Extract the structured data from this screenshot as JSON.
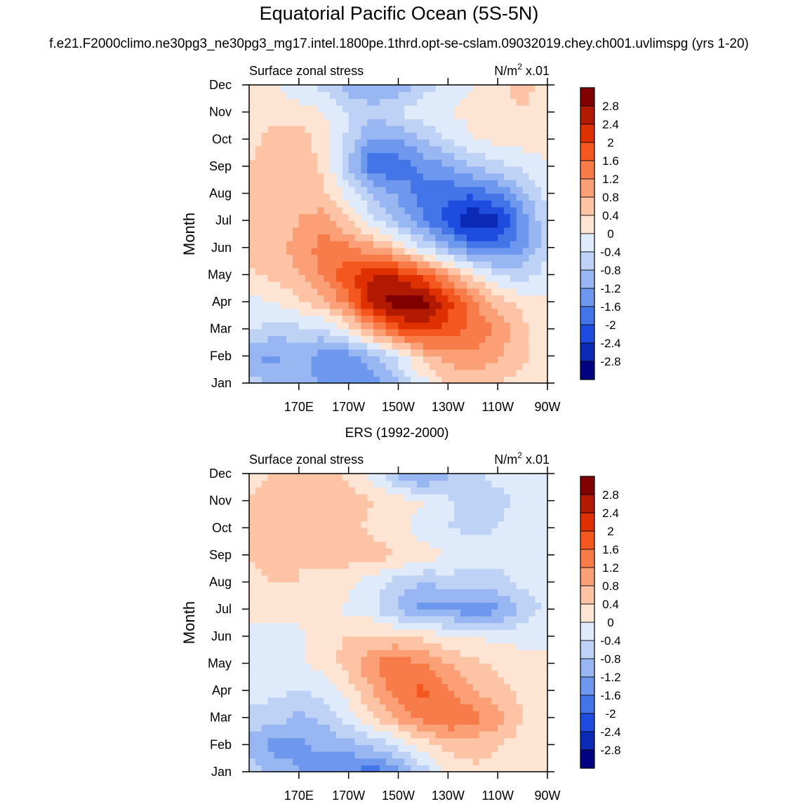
{
  "title": "Equatorial Pacific Ocean (5S-5N)",
  "subtitle": "f.e21.F2000climo.ne30pg3_ne30pg3_mg17.intel.1800pe.1thrd.opt-se-cslam.09032019.chey.ch001.uvlimspg (yrs 1-20)",
  "colorbar": {
    "labels": [
      "2.8",
      "2.4",
      "2",
      "1.6",
      "1.2",
      "0.8",
      "0.4",
      "0",
      "-0.4",
      "-0.8",
      "-1.2",
      "-1.6",
      "-2",
      "-2.4",
      "-2.8"
    ],
    "colors": [
      "#800000",
      "#b11a00",
      "#de3000",
      "#f4581e",
      "#f77c49",
      "#fa9f76",
      "#fcc3a5",
      "#fde4d3",
      "#dfeafa",
      "#bed2f6",
      "#97b6f2",
      "#6e98ee",
      "#4475e8",
      "#1e4cde",
      "#0b2bb6",
      "#000080"
    ]
  },
  "chart_data": [
    {
      "type": "heatmap",
      "title": "",
      "left_title": "Surface zonal stress",
      "units": "N/m",
      "units_sup": "2",
      "units_suffix": " x.01",
      "xlabel": "",
      "ylabel": "Month",
      "xlim": [
        150,
        270
      ],
      "x_ticks": [
        170,
        190,
        210,
        230,
        250,
        270
      ],
      "x_tick_labels": [
        "170E",
        "170W",
        "150W",
        "130W",
        "110W",
        "90W"
      ],
      "y_tick_labels": [
        "Jan",
        "Feb",
        "Mar",
        "Apr",
        "May",
        "Jun",
        "Jul",
        "Aug",
        "Sep",
        "Oct",
        "Nov",
        "Dec"
      ],
      "levels": [
        -2.8,
        -2.4,
        -2.0,
        -1.6,
        -1.2,
        -0.8,
        -0.4,
        0,
        0.4,
        0.8,
        1.2,
        1.6,
        2.0,
        2.4,
        2.8
      ],
      "x": [
        150,
        160,
        170,
        180,
        190,
        200,
        210,
        220,
        230,
        240,
        250,
        260,
        270
      ],
      "y": [
        1,
        2,
        3,
        4,
        5,
        6,
        7,
        8,
        9,
        10,
        11,
        12
      ],
      "z": [
        [
          -0.6,
          -0.9,
          -1.0,
          -1.3,
          -1.5,
          -1.4,
          -0.8,
          -0.2,
          0.4,
          0.6,
          0.4,
          0.2,
          0.1
        ],
        [
          -1.2,
          -1.3,
          -1.1,
          -1.4,
          -1.4,
          -1.0,
          -0.3,
          0.6,
          1.0,
          1.1,
          0.9,
          0.5,
          0.2
        ],
        [
          -0.3,
          -0.6,
          -0.5,
          -0.5,
          0.2,
          1.1,
          1.9,
          2.2,
          1.9,
          1.5,
          1.1,
          0.5,
          0.1
        ],
        [
          -0.1,
          0.0,
          0.3,
          0.7,
          1.4,
          2.7,
          3.1,
          3.0,
          2.2,
          1.3,
          0.6,
          0.3,
          0.1
        ],
        [
          0.3,
          0.5,
          0.8,
          1.3,
          1.9,
          2.4,
          2.3,
          1.8,
          1.0,
          0.3,
          -0.4,
          -0.6,
          -0.2
        ],
        [
          0.5,
          0.7,
          0.9,
          1.4,
          1.3,
          0.9,
          0.4,
          -0.4,
          -1.1,
          -1.6,
          -1.7,
          -1.3,
          -0.5
        ],
        [
          0.4,
          0.6,
          0.8,
          1.0,
          0.4,
          -0.3,
          -0.9,
          -1.5,
          -2.2,
          -2.9,
          -2.5,
          -1.5,
          -0.4
        ],
        [
          0.4,
          0.6,
          0.7,
          0.5,
          -0.2,
          -0.8,
          -1.3,
          -1.8,
          -1.9,
          -1.9,
          -1.6,
          -0.9,
          -0.3
        ],
        [
          0.4,
          0.6,
          0.7,
          0.3,
          -0.8,
          -2.0,
          -1.9,
          -1.5,
          -1.2,
          -0.8,
          -0.5,
          -0.3,
          0.0
        ],
        [
          0.3,
          0.5,
          0.6,
          0.2,
          -0.5,
          -1.3,
          -1.2,
          -0.8,
          -0.4,
          0.0,
          0.1,
          0.2,
          0.1
        ],
        [
          0.3,
          0.3,
          0.2,
          0.0,
          -0.4,
          -0.6,
          -0.4,
          -0.1,
          0.0,
          0.1,
          0.3,
          0.4,
          0.2
        ],
        [
          0.2,
          0.1,
          -0.3,
          -0.5,
          -1.0,
          -1.3,
          -1.1,
          -0.6,
          -0.2,
          0.0,
          0.3,
          0.5,
          0.3
        ]
      ]
    },
    {
      "type": "heatmap",
      "title": "ERS (1992-2000)",
      "left_title": "Surface zonal stress",
      "units": "N/m",
      "units_sup": "2",
      "units_suffix": " x.01",
      "xlabel": "",
      "ylabel": "Month",
      "xlim": [
        150,
        270
      ],
      "x_ticks": [
        170,
        190,
        210,
        230,
        250,
        270
      ],
      "x_tick_labels": [
        "170E",
        "170W",
        "150W",
        "130W",
        "110W",
        "90W"
      ],
      "y_tick_labels": [
        "Jan",
        "Feb",
        "Mar",
        "Apr",
        "May",
        "Jun",
        "Jul",
        "Aug",
        "Sep",
        "Oct",
        "Nov",
        "Dec"
      ],
      "levels": [
        -2.8,
        -2.4,
        -2.0,
        -1.6,
        -1.2,
        -0.8,
        -0.4,
        0,
        0.4,
        0.8,
        1.2,
        1.6,
        2.0,
        2.4,
        2.8
      ],
      "x": [
        150,
        160,
        170,
        180,
        190,
        200,
        210,
        220,
        230,
        240,
        250,
        260,
        270
      ],
      "y": [
        1,
        2,
        3,
        4,
        5,
        6,
        7,
        8,
        9,
        10,
        11,
        12
      ],
      "z": [
        [
          -0.6,
          -0.9,
          -1.2,
          -1.4,
          -1.6,
          -1.8,
          -1.4,
          -0.6,
          0.0,
          0.3,
          0.3,
          0.1,
          0.0
        ],
        [
          -1.0,
          -1.4,
          -1.3,
          -1.1,
          -1.0,
          -0.7,
          -0.3,
          0.2,
          0.6,
          0.6,
          0.4,
          0.2,
          0.1
        ],
        [
          -0.5,
          -0.6,
          -0.9,
          -0.7,
          -0.2,
          0.4,
          0.9,
          1.3,
          1.6,
          1.4,
          1.0,
          0.4,
          0.1
        ],
        [
          -0.3,
          -0.3,
          -0.4,
          -0.3,
          0.2,
          0.8,
          1.4,
          1.7,
          1.2,
          0.8,
          0.5,
          0.3,
          0.0
        ],
        [
          -0.2,
          -0.2,
          -0.1,
          0.2,
          0.6,
          1.2,
          1.5,
          1.2,
          0.8,
          0.5,
          0.3,
          0.1,
          0.0
        ],
        [
          -0.3,
          -0.4,
          -0.1,
          0.3,
          0.4,
          0.5,
          0.4,
          0.3,
          0.1,
          0.0,
          -0.1,
          -0.1,
          0.0
        ],
        [
          0.2,
          0.3,
          0.2,
          0.1,
          -0.1,
          -0.3,
          -0.9,
          -1.4,
          -1.3,
          -1.5,
          -1.3,
          -0.7,
          -0.3
        ],
        [
          0.3,
          0.4,
          0.4,
          0.3,
          0.1,
          -0.2,
          -0.6,
          -0.8,
          -0.6,
          -0.6,
          -0.5,
          -0.3,
          -0.2
        ],
        [
          0.4,
          0.5,
          0.4,
          0.5,
          0.6,
          0.6,
          0.4,
          0.2,
          0.0,
          -0.2,
          -0.3,
          -0.2,
          -0.1
        ],
        [
          0.4,
          0.5,
          0.5,
          0.6,
          0.5,
          0.3,
          0.1,
          -0.2,
          -0.4,
          -0.5,
          -0.4,
          -0.2,
          -0.1
        ],
        [
          0.4,
          0.5,
          0.6,
          0.8,
          0.6,
          0.4,
          0.2,
          0.0,
          -0.3,
          -0.6,
          -0.5,
          -0.3,
          -0.1
        ],
        [
          0.3,
          0.4,
          0.4,
          0.5,
          0.3,
          -0.2,
          -1.0,
          -1.4,
          -0.9,
          -0.5,
          -0.3,
          -0.2,
          0.0
        ]
      ]
    }
  ]
}
